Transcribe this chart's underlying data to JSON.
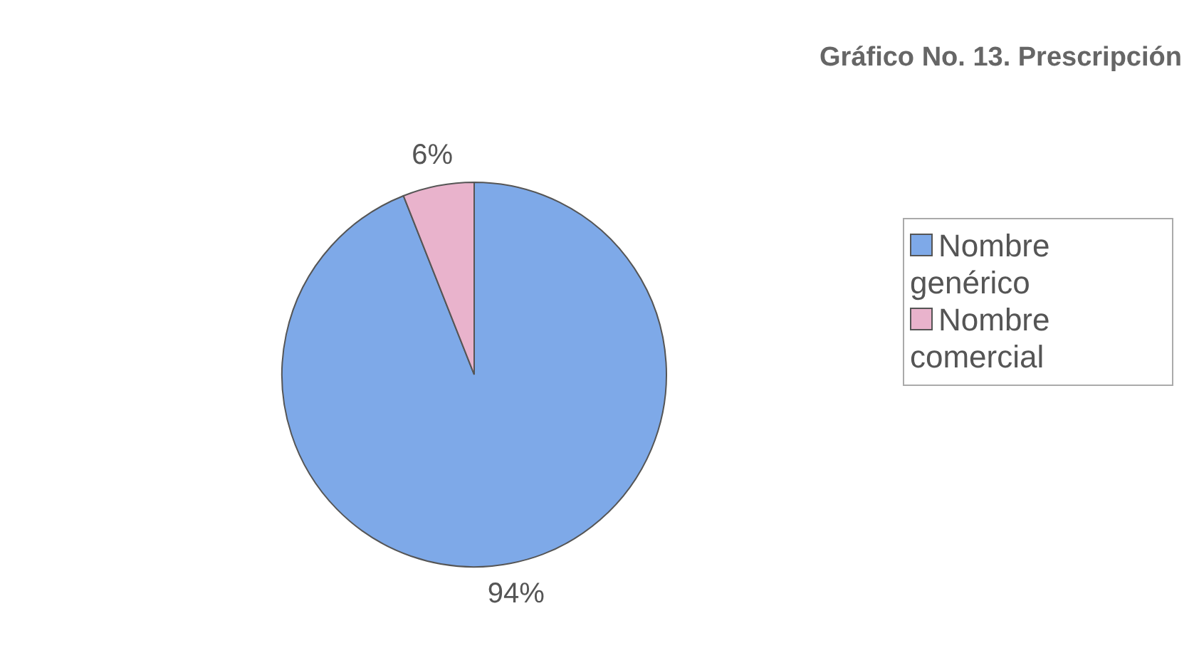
{
  "chart_data": {
    "type": "pie",
    "title": "Gráfico No. 13.  Prescripción",
    "categories": [
      "Nombre genérico",
      "Nombre comercial"
    ],
    "values": [
      94,
      6
    ],
    "colors": [
      "#7ea9e8",
      "#e9b3cc"
    ],
    "value_labels": [
      "94%",
      "6%"
    ],
    "legend": "right"
  }
}
